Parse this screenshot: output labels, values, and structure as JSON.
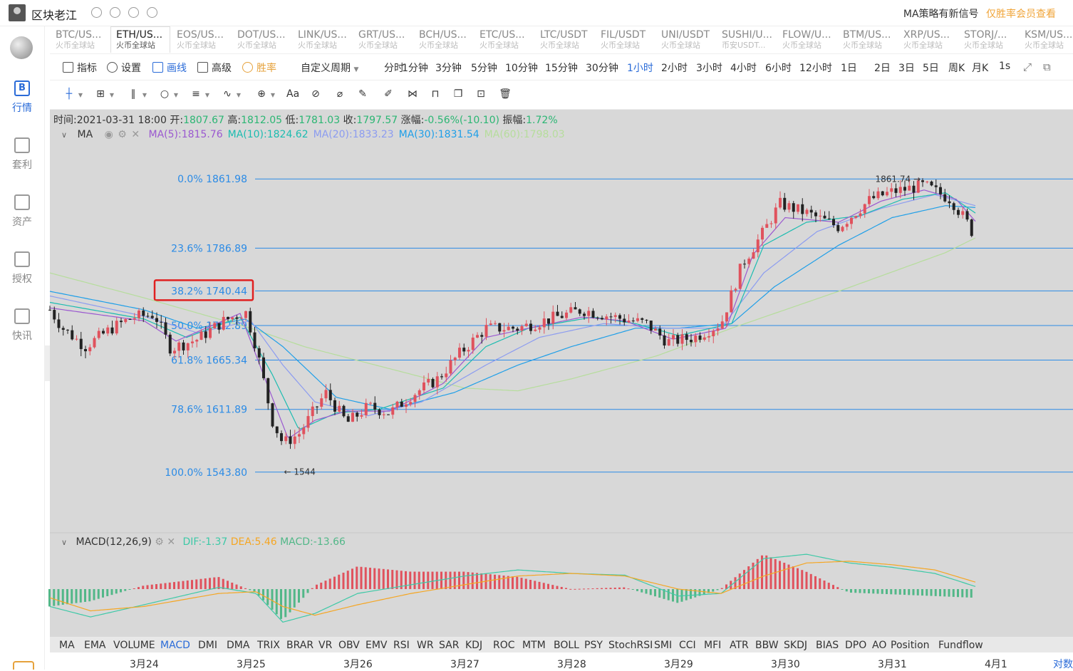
{
  "header": {
    "username": "区块老江",
    "notice": "MA策略有新信号",
    "notice_link": "仅胜率会员查看"
  },
  "sidebar": {
    "items": [
      {
        "label": "行情",
        "icon": "B",
        "active": true
      },
      {
        "label": "套利",
        "icon": "",
        "active": false
      },
      {
        "label": "资产",
        "icon": "",
        "active": false
      },
      {
        "label": "授权",
        "icon": "",
        "active": false
      },
      {
        "label": "快讯",
        "icon": "",
        "active": false
      }
    ]
  },
  "pairs": [
    {
      "name": "BTC/US...",
      "exchange": "火币全球站"
    },
    {
      "name": "ETH/US...",
      "exchange": "火币全球站",
      "active": true
    },
    {
      "name": "EOS/US...",
      "exchange": "火币全球站"
    },
    {
      "name": "DOT/US...",
      "exchange": "火币全球站"
    },
    {
      "name": "LINK/US...",
      "exchange": "火币全球站"
    },
    {
      "name": "GRT/US...",
      "exchange": "火币全球站"
    },
    {
      "name": "BCH/US...",
      "exchange": "火币全球站"
    },
    {
      "name": "ETC/US...",
      "exchange": "火币全球站"
    },
    {
      "name": "LTC/USDT",
      "exchange": "火币全球站"
    },
    {
      "name": "FIL/USDT",
      "exchange": "火币全球站"
    },
    {
      "name": "UNI/USDT",
      "exchange": "火币全球站"
    },
    {
      "name": "SUSHI/U...",
      "exchange": "币安USDT..."
    },
    {
      "name": "FLOW/U...",
      "exchange": "火币全球站"
    },
    {
      "name": "BTM/US...",
      "exchange": "火币全球站"
    },
    {
      "name": "XRP/US...",
      "exchange": "火币全球站"
    },
    {
      "name": "STORJ/...",
      "exchange": "火币全球站"
    },
    {
      "name": "KSM/US...",
      "exchange": "火币全球站"
    }
  ],
  "toolbar": {
    "indicator": "指标",
    "settings": "设置",
    "draw": "画线",
    "advanced": "高级",
    "winrate": "胜率",
    "custom_period": "自定义周期",
    "periods": [
      "分时",
      "1分钟",
      "3分钟",
      "5分钟",
      "10分钟",
      "15分钟",
      "30分钟",
      "1小时",
      "2小时",
      "3小时",
      "4小时",
      "6小时",
      "12小时",
      "1日",
      "2日",
      "3日",
      "5日",
      "周K",
      "月K"
    ],
    "active_period": "1小时",
    "interval": "1s"
  },
  "ohlc": {
    "time_label": "时间:",
    "time": "2021-03-31 18:00",
    "open_label": "开:",
    "open": "1807.67",
    "high_label": "高:",
    "high": "1812.05",
    "low_label": "低:",
    "low": "1781.03",
    "close_label": "收:",
    "close": "1797.57",
    "change_label": "涨幅:",
    "change": "-0.56%(-10.10)",
    "amp_label": "振幅:",
    "amp": "1.72%"
  },
  "ma_legend": {
    "title": "MA",
    "items": [
      {
        "label": "MA(5):1815.76",
        "color": "#9b59d0"
      },
      {
        "label": "MA(10):1824.62",
        "color": "#1cbcb0"
      },
      {
        "label": "MA(20):1833.23",
        "color": "#8c9cf0"
      },
      {
        "label": "MA(30):1831.54",
        "color": "#1f9fe8"
      },
      {
        "label": "MA(60):1798.03",
        "color": "#b6dd9c"
      }
    ]
  },
  "macd_legend": {
    "title": "MACD(12,26,9)",
    "dif": "DIF:-1.37",
    "dea": "DEA:5.46",
    "macd": "MACD:-13.66"
  },
  "colors": {
    "up": "#e0525d",
    "down": "#222222",
    "fib_line": "#2b8be6",
    "dif": "#3ec9a7",
    "dea": "#f5a623",
    "hist_pos": "#e0525d",
    "hist_neg": "#52b788",
    "highlight": "#e02020"
  },
  "chart_data": {
    "type": "candlestick",
    "y_range": [
      1515,
      1890
    ],
    "fibonacci": [
      {
        "label": "0.0% 1861.98",
        "value": 1861.98
      },
      {
        "label": "23.6% 1786.89",
        "value": 1786.89
      },
      {
        "label": "38.2% 1740.44",
        "value": 1740.44,
        "highlighted": true
      },
      {
        "label": "50.0% 1702.89",
        "value": 1702.89
      },
      {
        "label": "61.8% 1665.34",
        "value": 1665.34
      },
      {
        "label": "78.6% 1611.89",
        "value": 1611.89
      },
      {
        "label": "100.0% 1543.80",
        "value": 1543.8
      }
    ],
    "annotations": [
      {
        "label": "1861.74",
        "value": 1861.74,
        "day_index": 7.28
      },
      {
        "label": "1544",
        "value": 1544,
        "day_index": 1.27
      }
    ],
    "x_dates": [
      "3月24",
      "3月25",
      "3月26",
      "3月27",
      "3月28",
      "3月29",
      "3月30",
      "3月31",
      "4月1"
    ],
    "price_path_keypoints": [
      {
        "day": -0.88,
        "price": 1720
      },
      {
        "day": -0.76,
        "price": 1700
      },
      {
        "day": -0.55,
        "price": 1680
      },
      {
        "day": -0.3,
        "price": 1700
      },
      {
        "day": -0.1,
        "price": 1712
      },
      {
        "day": 0.1,
        "price": 1715
      },
      {
        "day": 0.25,
        "price": 1678
      },
      {
        "day": 0.5,
        "price": 1688
      },
      {
        "day": 0.75,
        "price": 1708
      },
      {
        "day": 0.95,
        "price": 1718
      },
      {
        "day": 1.05,
        "price": 1680
      },
      {
        "day": 1.2,
        "price": 1600
      },
      {
        "day": 1.3,
        "price": 1575
      },
      {
        "day": 1.45,
        "price": 1585
      },
      {
        "day": 1.7,
        "price": 1630
      },
      {
        "day": 1.9,
        "price": 1597
      },
      {
        "day": 2.1,
        "price": 1615
      },
      {
        "day": 2.3,
        "price": 1608
      },
      {
        "day": 2.5,
        "price": 1627
      },
      {
        "day": 2.75,
        "price": 1645
      },
      {
        "day": 2.95,
        "price": 1672
      },
      {
        "day": 3.2,
        "price": 1700
      },
      {
        "day": 3.5,
        "price": 1700
      },
      {
        "day": 3.8,
        "price": 1710
      },
      {
        "day": 4.1,
        "price": 1720
      },
      {
        "day": 4.4,
        "price": 1712
      },
      {
        "day": 4.7,
        "price": 1705
      },
      {
        "day": 4.9,
        "price": 1685
      },
      {
        "day": 5.15,
        "price": 1690
      },
      {
        "day": 5.4,
        "price": 1705
      },
      {
        "day": 5.6,
        "price": 1770
      },
      {
        "day": 5.8,
        "price": 1805
      },
      {
        "day": 5.95,
        "price": 1835
      },
      {
        "day": 6.2,
        "price": 1825
      },
      {
        "day": 6.5,
        "price": 1810
      },
      {
        "day": 6.8,
        "price": 1840
      },
      {
        "day": 7.0,
        "price": 1848
      },
      {
        "day": 7.3,
        "price": 1855
      },
      {
        "day": 7.55,
        "price": 1840
      },
      {
        "day": 7.7,
        "price": 1815
      },
      {
        "day": 7.78,
        "price": 1798
      }
    ],
    "ma_series": [
      {
        "name": "MA(60)",
        "points": [
          [
            -0.88,
            1760
          ],
          [
            0.0,
            1733
          ],
          [
            1.0,
            1700
          ],
          [
            1.5,
            1680
          ],
          [
            2.0,
            1665
          ],
          [
            3.0,
            1635
          ],
          [
            3.5,
            1632
          ],
          [
            4.0,
            1645
          ],
          [
            4.8,
            1670
          ],
          [
            5.5,
            1700
          ],
          [
            6.5,
            1740
          ],
          [
            7.5,
            1782
          ],
          [
            7.78,
            1798
          ]
        ]
      },
      {
        "name": "MA(30)",
        "points": [
          [
            -0.88,
            1740
          ],
          [
            0.0,
            1720
          ],
          [
            0.5,
            1700
          ],
          [
            0.95,
            1710
          ],
          [
            1.3,
            1680
          ],
          [
            1.8,
            1625
          ],
          [
            2.3,
            1612
          ],
          [
            2.9,
            1630
          ],
          [
            3.5,
            1660
          ],
          [
            4.0,
            1680
          ],
          [
            4.6,
            1700
          ],
          [
            5.0,
            1700
          ],
          [
            5.5,
            1705
          ],
          [
            5.9,
            1745
          ],
          [
            6.5,
            1790
          ],
          [
            7.0,
            1820
          ],
          [
            7.5,
            1833
          ],
          [
            7.78,
            1831
          ]
        ]
      },
      {
        "name": "MA(20)",
        "points": [
          [
            -0.88,
            1735
          ],
          [
            0.0,
            1713
          ],
          [
            0.5,
            1695
          ],
          [
            1.0,
            1708
          ],
          [
            1.3,
            1660
          ],
          [
            1.6,
            1620
          ],
          [
            2.1,
            1605
          ],
          [
            2.6,
            1620
          ],
          [
            3.2,
            1660
          ],
          [
            3.7,
            1690
          ],
          [
            4.3,
            1705
          ],
          [
            4.9,
            1700
          ],
          [
            5.4,
            1700
          ],
          [
            5.8,
            1760
          ],
          [
            6.3,
            1805
          ],
          [
            6.9,
            1830
          ],
          [
            7.4,
            1845
          ],
          [
            7.78,
            1833
          ]
        ]
      },
      {
        "name": "MA(10)",
        "points": [
          [
            -0.88,
            1728
          ],
          [
            0.0,
            1710
          ],
          [
            0.4,
            1690
          ],
          [
            0.9,
            1712
          ],
          [
            1.2,
            1650
          ],
          [
            1.45,
            1590
          ],
          [
            1.8,
            1608
          ],
          [
            2.2,
            1612
          ],
          [
            2.8,
            1635
          ],
          [
            3.2,
            1680
          ],
          [
            3.6,
            1700
          ],
          [
            4.2,
            1712
          ],
          [
            4.6,
            1705
          ],
          [
            5.0,
            1692
          ],
          [
            5.5,
            1705
          ],
          [
            5.8,
            1790
          ],
          [
            6.2,
            1815
          ],
          [
            6.7,
            1822
          ],
          [
            7.1,
            1840
          ],
          [
            7.5,
            1847
          ],
          [
            7.78,
            1825
          ]
        ]
      },
      {
        "name": "MA(5)",
        "points": [
          [
            -0.88,
            1722
          ],
          [
            0.0,
            1708
          ],
          [
            0.3,
            1686
          ],
          [
            0.9,
            1716
          ],
          [
            1.15,
            1640
          ],
          [
            1.35,
            1580
          ],
          [
            1.6,
            1600
          ],
          [
            1.9,
            1610
          ],
          [
            2.3,
            1610
          ],
          [
            2.8,
            1640
          ],
          [
            3.2,
            1690
          ],
          [
            3.6,
            1700
          ],
          [
            4.1,
            1712
          ],
          [
            4.5,
            1708
          ],
          [
            4.95,
            1688
          ],
          [
            5.45,
            1700
          ],
          [
            5.7,
            1780
          ],
          [
            6.0,
            1820
          ],
          [
            6.5,
            1815
          ],
          [
            6.9,
            1838
          ],
          [
            7.3,
            1850
          ],
          [
            7.6,
            1840
          ],
          [
            7.78,
            1816
          ]
        ]
      }
    ],
    "macd": {
      "y_range": [
        -45,
        45
      ],
      "dif": [
        [
          -0.88,
          -20
        ],
        [
          -0.5,
          -32
        ],
        [
          0.0,
          -18
        ],
        [
          0.7,
          2
        ],
        [
          1.05,
          -5
        ],
        [
          1.3,
          -38
        ],
        [
          1.6,
          -28
        ],
        [
          2.0,
          -5
        ],
        [
          2.5,
          5
        ],
        [
          3.0,
          15
        ],
        [
          3.5,
          22
        ],
        [
          4.0,
          18
        ],
        [
          4.5,
          16
        ],
        [
          5.0,
          -8
        ],
        [
          5.4,
          -5
        ],
        [
          5.8,
          35
        ],
        [
          6.2,
          40
        ],
        [
          6.6,
          30
        ],
        [
          7.0,
          25
        ],
        [
          7.4,
          18
        ],
        [
          7.78,
          3
        ]
      ],
      "dea": [
        [
          -0.88,
          -10
        ],
        [
          -0.5,
          -25
        ],
        [
          0.0,
          -20
        ],
        [
          0.7,
          -5
        ],
        [
          1.05,
          -3
        ],
        [
          1.3,
          -20
        ],
        [
          1.6,
          -30
        ],
        [
          2.0,
          -18
        ],
        [
          2.5,
          -5
        ],
        [
          3.0,
          5
        ],
        [
          3.5,
          15
        ],
        [
          4.0,
          18
        ],
        [
          4.5,
          15
        ],
        [
          5.0,
          0
        ],
        [
          5.4,
          -5
        ],
        [
          5.8,
          15
        ],
        [
          6.2,
          30
        ],
        [
          6.6,
          32
        ],
        [
          7.0,
          28
        ],
        [
          7.4,
          22
        ],
        [
          7.78,
          8
        ]
      ]
    }
  },
  "indicators": [
    "MA",
    "EMA",
    "VOLUME",
    "MACD",
    "DMI",
    "DMA",
    "TRIX",
    "BRAR",
    "VR",
    "OBV",
    "EMV",
    "RSI",
    "WR",
    "SAR",
    "KDJ",
    "ROC",
    "MTM",
    "BOLL",
    "PSY",
    "StochRSI",
    "SMI",
    "CCI",
    "MFI",
    "ATR",
    "BBW",
    "SKDJ",
    "BIAS",
    "DPO",
    "AO",
    "Position",
    "Fundflow"
  ],
  "active_indicator": "MACD",
  "corner_text": "对数"
}
